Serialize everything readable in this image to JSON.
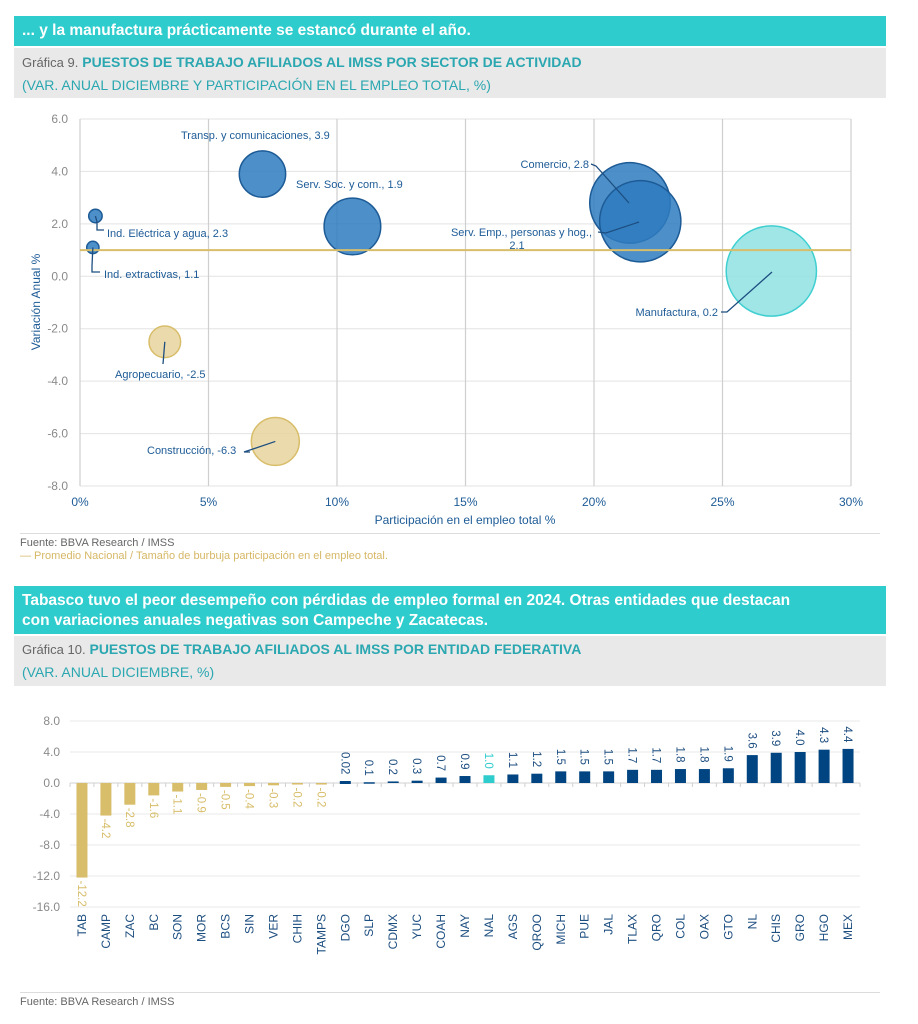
{
  "section1": {
    "banner": "... y la manufactura prácticamente se estancó durante el año.",
    "chart_label": "Gráfica 9.",
    "chart_title": "PUESTOS DE TRABAJO AFILIADOS AL IMSS POR SECTOR DE ACTIVIDAD",
    "chart_subtitle": "(VAR. ANUAL DICIEMBRE Y PARTICIPACIÓN EN EL EMPLEO TOTAL, %)",
    "source": "Fuente: BBVA Research / IMSS",
    "note": "— Promedio Nacional / Tamaño de burbuja participación en el empleo total."
  },
  "section2": {
    "banner_line1": "Tabasco tuvo el peor desempeño con pérdidas de empleo formal en 2024. Otras entidades que destacan",
    "banner_line2": "con variaciones anuales negativas son Campeche y Zacatecas.",
    "chart_label": "Gráfica 10.",
    "chart_title": "PUESTOS DE TRABAJO AFILIADOS AL IMSS POR ENTIDAD FEDERATIVA",
    "chart_subtitle": "(VAR. ANUAL DICIEMBRE, %)",
    "source": "Fuente: BBVA Research / IMSS"
  },
  "colors": {
    "teal": "#2ecccd",
    "blue_bubble": "#2e7bbf",
    "navy_bar": "#004481",
    "gold": "#d8bd6a",
    "cyan_bubble": "#7fdfe0",
    "average_line": "#d8bd6a"
  },
  "chart_data": [
    {
      "type": "scatter",
      "subtype": "bubble",
      "title": "PUESTOS DE TRABAJO AFILIADOS AL IMSS POR SECTOR DE ACTIVIDAD",
      "xlabel": "Participación en el empleo total %",
      "ylabel": "Variación Anual %",
      "xlim": [
        0,
        30
      ],
      "ylim": [
        -8,
        6
      ],
      "xticks": [
        "0%",
        "5%",
        "10%",
        "15%",
        "20%",
        "25%",
        "30%"
      ],
      "xtick_values": [
        0,
        5,
        10,
        15,
        20,
        25,
        30
      ],
      "yticks": [
        "6.0",
        "4.0",
        "2.0",
        "0.0",
        "-2.0",
        "-4.0",
        "-6.0",
        "-8.0"
      ],
      "ytick_values": [
        6,
        4,
        2,
        0,
        -2,
        -4,
        -6,
        -8
      ],
      "grid": true,
      "reference_line": {
        "name": "Promedio Nacional",
        "y": 1.0
      },
      "points": [
        {
          "name": "Ind. extractivas",
          "label": "Ind. extractivas, 1.1",
          "x": 0.5,
          "y": 1.1,
          "size": 0.5,
          "color": "blue"
        },
        {
          "name": "Ind. Eléctrica y agua",
          "label": "Ind. Eléctrica y agua, 2.3",
          "x": 0.6,
          "y": 2.3,
          "size": 0.6,
          "color": "blue"
        },
        {
          "name": "Agropecuario",
          "label": "Agropecuario, -2.5",
          "x": 3.3,
          "y": -2.5,
          "size": 3.3,
          "color": "gold"
        },
        {
          "name": "Transp. y comunicaciones",
          "label": "Transp. y comunicaciones, 3.9",
          "x": 7.1,
          "y": 3.9,
          "size": 7.1,
          "color": "blue"
        },
        {
          "name": "Construcción",
          "label": "Construcción, -6.3",
          "x": 7.6,
          "y": -6.3,
          "size": 7.6,
          "color": "gold"
        },
        {
          "name": "Serv. Soc. y com.",
          "label": "Serv. Soc. y com., 1.9",
          "x": 10.6,
          "y": 1.9,
          "size": 10.6,
          "color": "blue"
        },
        {
          "name": "Comercio",
          "label": "Comercio, 2.8",
          "x": 21.4,
          "y": 2.8,
          "size": 21.4,
          "color": "blue"
        },
        {
          "name": "Serv. Emp., personas y hog.",
          "label": "Serv. Emp., personas y hog.,",
          "label2": "2.1",
          "x": 21.8,
          "y": 2.1,
          "size": 21.8,
          "color": "blue"
        },
        {
          "name": "Manufactura",
          "label": "Manufactura,  0.2",
          "x": 26.9,
          "y": 0.2,
          "size": 26.9,
          "color": "cyan"
        }
      ]
    },
    {
      "type": "bar",
      "title": "PUESTOS DE TRABAJO AFILIADOS AL IMSS POR ENTIDAD FEDERATIVA",
      "xlabel": "",
      "ylabel": "",
      "ylim": [
        -16,
        8
      ],
      "yticks": [
        "8.0",
        "4.0",
        "0.0",
        "-4.0",
        "-8.0",
        "-12.0",
        "-16.0"
      ],
      "ytick_values": [
        8,
        4,
        0,
        -4,
        -8,
        -12,
        -16
      ],
      "grid": true,
      "categories": [
        "TAB",
        "CAMP",
        "ZAC",
        "BC",
        "SON",
        "MOR",
        "BCS",
        "SIN",
        "VER",
        "CHIH",
        "TAMPS",
        "DGO",
        "SLP",
        "CDMX",
        "YUC",
        "COAH",
        "NAY",
        "NAL",
        "AGS",
        "QROO",
        "MICH",
        "PUE",
        "JAL",
        "TLAX",
        "QRO",
        "COL",
        "OAX",
        "GTO",
        "NL",
        "CHIS",
        "GRO",
        "HGO",
        "MEX"
      ],
      "values": [
        -12.2,
        -4.2,
        -2.8,
        -1.6,
        -1.1,
        -0.9,
        -0.5,
        -0.4,
        -0.3,
        -0.2,
        -0.2,
        0.02,
        0.1,
        0.2,
        0.3,
        0.7,
        0.9,
        1.0,
        1.1,
        1.2,
        1.5,
        1.5,
        1.5,
        1.7,
        1.7,
        1.8,
        1.8,
        1.9,
        3.6,
        3.9,
        4.0,
        4.3,
        4.4
      ],
      "labels": [
        "-12.2",
        "-4.2",
        "-2.8",
        "-1.6",
        "-1.1",
        "-0.9",
        "-0.5",
        "-0.4",
        "-0.3",
        "-0.2",
        "-0.2",
        "0.02",
        "0.1",
        "0.2",
        "0.3",
        "0.7",
        "0.9",
        "1.0",
        "1.1",
        "1.2",
        "1.5",
        "1.5",
        "1.5",
        "1.7",
        "1.7",
        "1.8",
        "1.8",
        "1.9",
        "3.6",
        "3.9",
        "4.0",
        "4.3",
        "4.4"
      ],
      "highlight": {
        "NAL": "teal"
      }
    }
  ]
}
